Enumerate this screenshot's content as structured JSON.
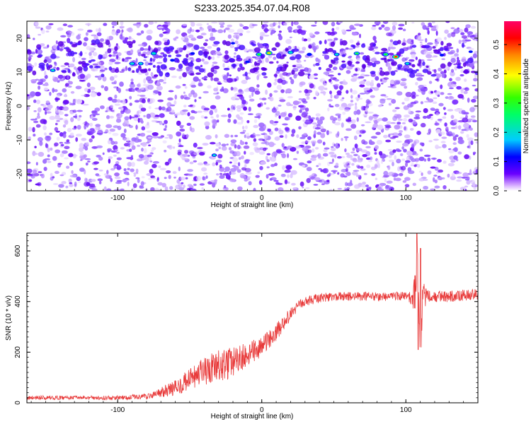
{
  "title": "S233.2025.354.07.04.R08",
  "chart_data": [
    {
      "type": "heatmap",
      "xlabel": "Height of straight line (km)",
      "ylabel": "Frequency (Hz)",
      "xlim": [
        -163,
        150
      ],
      "ylim": [
        -25,
        25
      ],
      "xticks": [
        -100,
        0,
        100
      ],
      "yticks": [
        -20,
        -10,
        0,
        10,
        20
      ],
      "colorbar": {
        "label": "Normalized spectral amplitude",
        "range": [
          0,
          0.58
        ],
        "ticks": [
          0.0,
          0.1,
          0.2,
          0.3,
          0.4,
          0.5
        ],
        "colors": [
          "#ffffff",
          "#cc99ff",
          "#6a00ff",
          "#0000ff",
          "#00ccff",
          "#00ff66",
          "#33ff00",
          "#ffff00",
          "#ff8800",
          "#ff0000",
          "#ff0066"
        ]
      },
      "band": {
        "frequency_center": 14,
        "features": [
          {
            "x": -145,
            "f": 10.5,
            "amp": 0.22
          },
          {
            "x": -90,
            "f": 12.5,
            "amp": 0.25
          },
          {
            "x": -84,
            "f": 12.5,
            "amp": 0.22
          },
          {
            "x": -75,
            "f": 15.5,
            "amp": 0.27
          },
          {
            "x": -62,
            "f": 13.5,
            "amp": 0.15
          },
          {
            "x": -48,
            "f": 15.5,
            "amp": 0.14
          },
          {
            "x": -20,
            "f": 18.5,
            "amp": 0.13
          },
          {
            "x": -10,
            "f": 13.0,
            "amp": 0.14
          },
          {
            "x": -2,
            "f": 15.2,
            "amp": 0.3
          },
          {
            "x": 5,
            "f": 15.6,
            "amp": 0.45
          },
          {
            "x": 20,
            "f": 15.8,
            "amp": 0.25
          },
          {
            "x": 33,
            "f": 15.2,
            "amp": 0.18
          },
          {
            "x": 52,
            "f": 15.2,
            "amp": 0.22
          },
          {
            "x": 66,
            "f": 15.5,
            "amp": 0.28
          },
          {
            "x": 86,
            "f": 15.2,
            "amp": 0.3
          },
          {
            "x": 93,
            "f": 14.5,
            "amp": 0.52
          },
          {
            "x": 101,
            "f": 12.5,
            "amp": 0.22
          },
          {
            "x": 125,
            "f": 15.0,
            "amp": 0.15
          },
          {
            "x": 145,
            "f": 16.0,
            "amp": 0.13
          },
          {
            "x": -33,
            "f": -14.5,
            "amp": 0.2
          }
        ]
      }
    },
    {
      "type": "line",
      "xlabel": "Height of straight line (km)",
      "ylabel": "SNR (10 * v/v)",
      "xlim": [
        -163,
        150
      ],
      "ylim": [
        0,
        670
      ],
      "xticks": [
        -100,
        0,
        100
      ],
      "yticks": [
        0,
        200,
        400,
        600
      ],
      "series_color": "#e83a3a",
      "profile": {
        "x": [
          -163,
          -100,
          -80,
          -70,
          -60,
          -50,
          -40,
          -30,
          -20,
          -10,
          0,
          10,
          20,
          25,
          30,
          40,
          50,
          60,
          70,
          80,
          90,
          100,
          104,
          106,
          108,
          110,
          112,
          115,
          120,
          130,
          140,
          150
        ],
        "y": [
          20,
          20,
          25,
          40,
          60,
          90,
          120,
          140,
          160,
          190,
          220,
          280,
          350,
          380,
          400,
          415,
          420,
          420,
          420,
          420,
          420,
          420,
          410,
          430,
          560,
          240,
          420,
          420,
          420,
          420,
          425,
          430
        ],
        "noise": [
          8,
          8,
          12,
          20,
          30,
          45,
          60,
          70,
          60,
          50,
          40,
          35,
          25,
          22,
          20,
          18,
          18,
          18,
          18,
          18,
          18,
          18,
          30,
          80,
          100,
          100,
          60,
          25,
          22,
          22,
          22,
          22
        ]
      }
    }
  ]
}
